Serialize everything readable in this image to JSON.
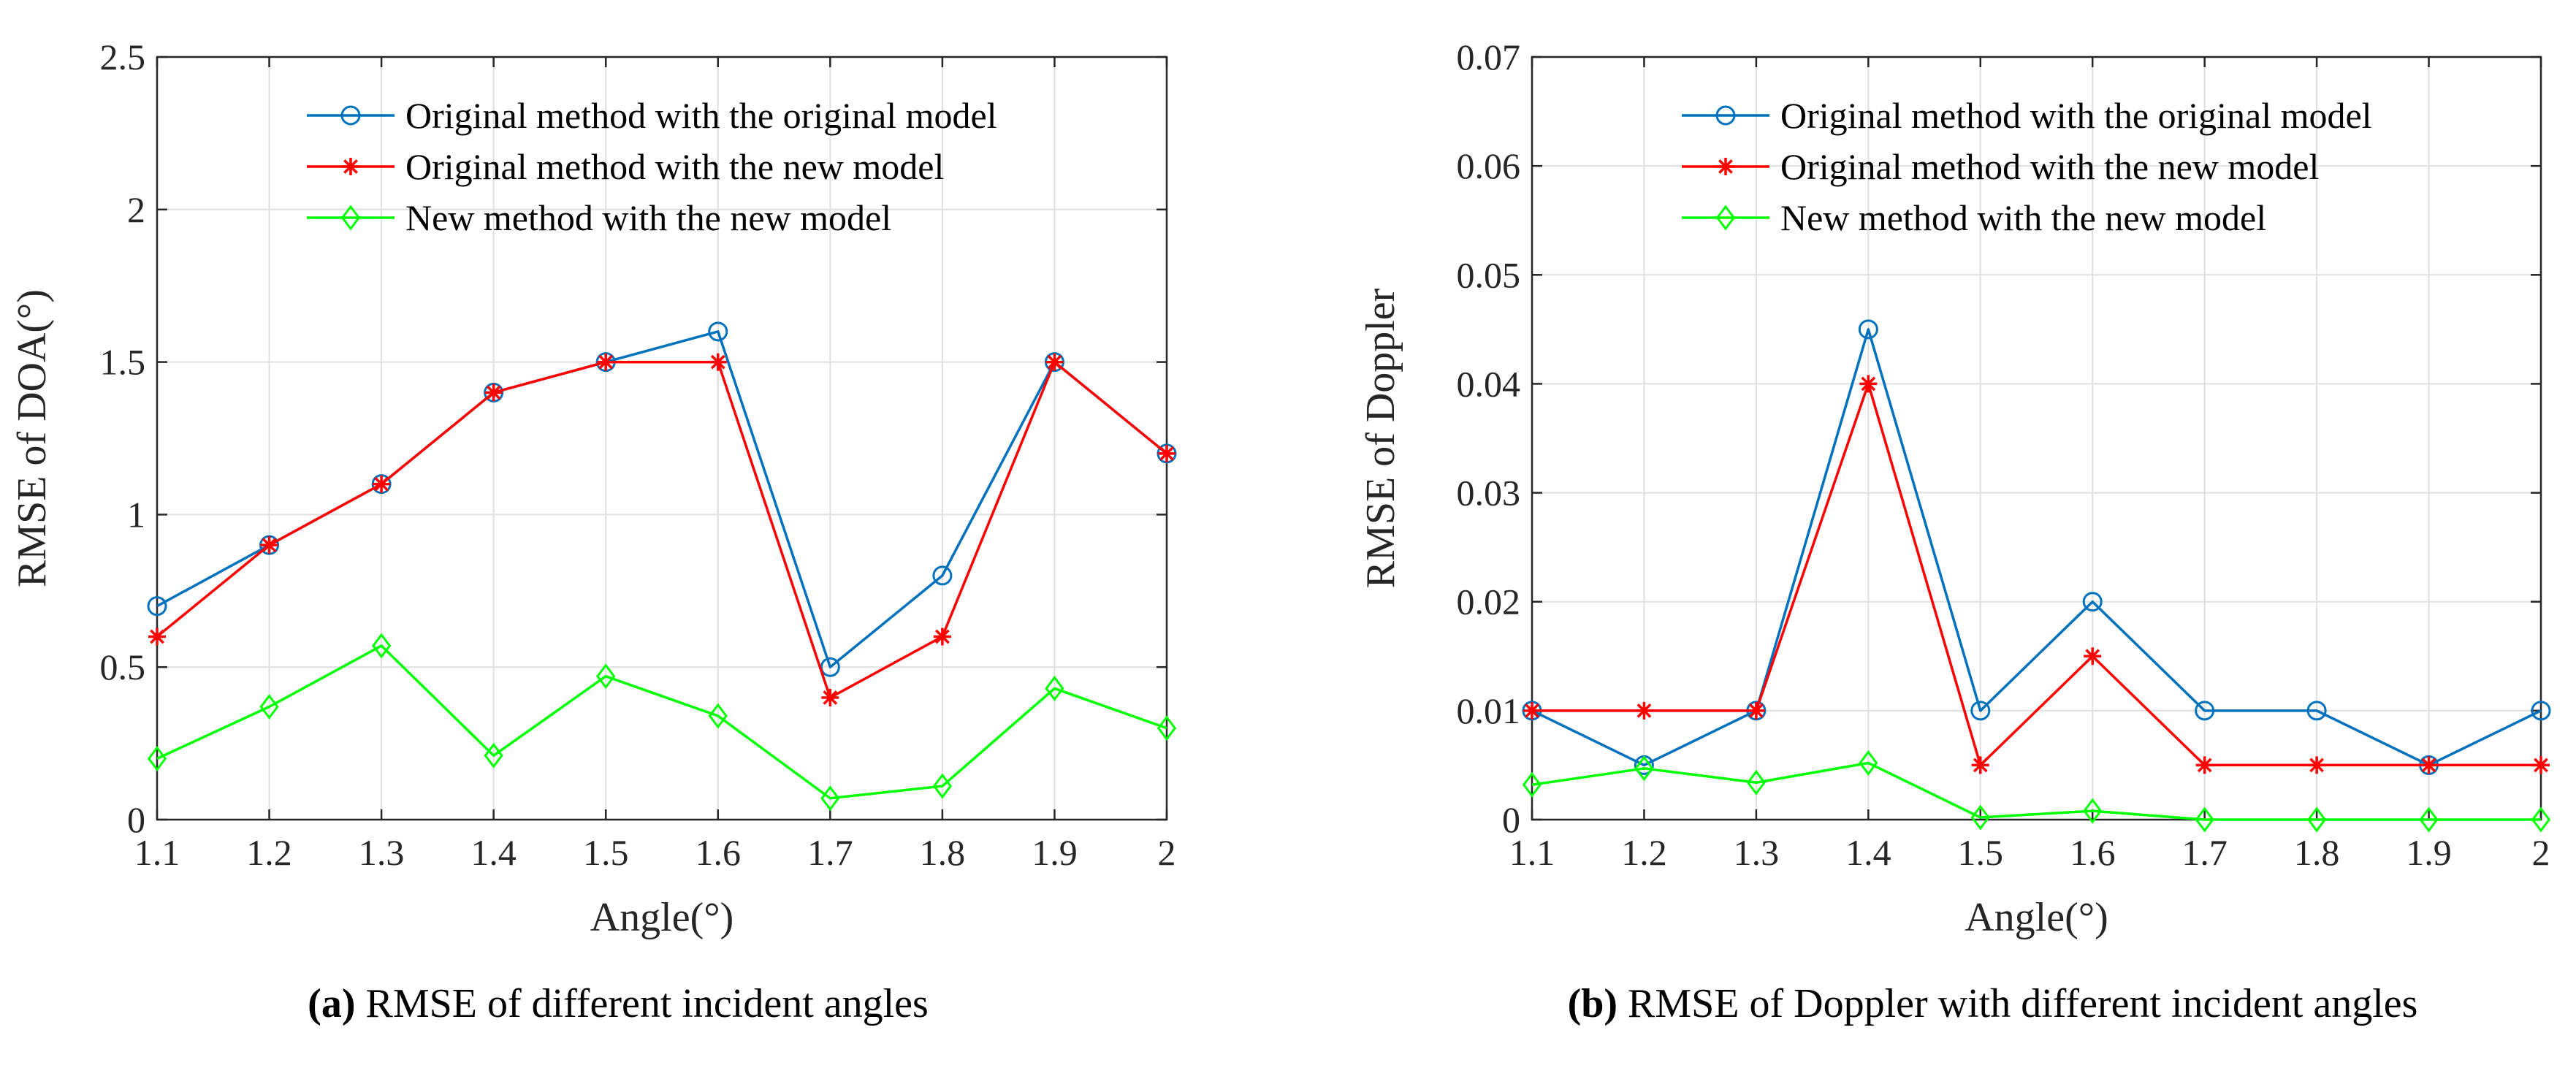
{
  "chart_data": [
    {
      "type": "line",
      "xlabel": "Angle(°)",
      "ylabel": "RMSE of DOA(°)",
      "xlim": [
        1.1,
        2.0
      ],
      "ylim": [
        0,
        2.5
      ],
      "xticks": [
        1.1,
        1.2,
        1.3,
        1.4,
        1.5,
        1.6,
        1.7,
        1.8,
        1.9,
        2.0
      ],
      "xtick_labels": [
        "1.1",
        "1.2",
        "1.3",
        "1.4",
        "1.5",
        "1.6",
        "1.7",
        "1.8",
        "1.9",
        "2"
      ],
      "yticks": [
        0,
        0.5,
        1,
        1.5,
        2,
        2.5
      ],
      "ytick_labels": [
        "0",
        "0.5",
        "1",
        "1.5",
        "2",
        "2.5"
      ],
      "grid": true,
      "legend_position": "top-right",
      "x": [
        1.1,
        1.2,
        1.3,
        1.4,
        1.5,
        1.6,
        1.7,
        1.8,
        1.9,
        2.0
      ],
      "series": [
        {
          "name": "Original method with the original model",
          "color": "#0072BD",
          "marker": "circle",
          "values": [
            0.7,
            0.9,
            1.1,
            1.4,
            1.5,
            1.6,
            0.5,
            0.8,
            1.5,
            1.2
          ]
        },
        {
          "name": "Original method with the new model",
          "color": "#FF0000",
          "marker": "asterisk",
          "values": [
            0.6,
            0.9,
            1.1,
            1.4,
            1.5,
            1.5,
            0.4,
            0.6,
            1.5,
            1.2
          ]
        },
        {
          "name": "New method with the new model",
          "color": "#00FF00",
          "marker": "diamond",
          "values": [
            0.2,
            0.37,
            0.57,
            0.21,
            0.47,
            0.34,
            0.07,
            0.11,
            0.43,
            0.3
          ]
        }
      ],
      "caption_letter": "(a)",
      "caption_text": "RMSE of different incident angles"
    },
    {
      "type": "line",
      "xlabel": "Angle(°)",
      "ylabel": "RMSE of Doppler",
      "xlim": [
        1.1,
        2.0
      ],
      "ylim": [
        0,
        0.07
      ],
      "xticks": [
        1.1,
        1.2,
        1.3,
        1.4,
        1.5,
        1.6,
        1.7,
        1.8,
        1.9,
        2.0
      ],
      "xtick_labels": [
        "1.1",
        "1.2",
        "1.3",
        "1.4",
        "1.5",
        "1.6",
        "1.7",
        "1.8",
        "1.9",
        "2"
      ],
      "yticks": [
        0,
        0.01,
        0.02,
        0.03,
        0.04,
        0.05,
        0.06,
        0.07
      ],
      "ytick_labels": [
        "0",
        "0.01",
        "0.02",
        "0.03",
        "0.04",
        "0.05",
        "0.06",
        "0.07"
      ],
      "grid": true,
      "legend_position": "top-right",
      "x": [
        1.1,
        1.2,
        1.3,
        1.4,
        1.5,
        1.6,
        1.7,
        1.8,
        1.9,
        2.0
      ],
      "series": [
        {
          "name": "Original method with the original model",
          "color": "#0072BD",
          "marker": "circle",
          "values": [
            0.01,
            0.005,
            0.01,
            0.045,
            0.01,
            0.02,
            0.01,
            0.01,
            0.005,
            0.01
          ]
        },
        {
          "name": "Original method with the new model",
          "color": "#FF0000",
          "marker": "asterisk",
          "values": [
            0.01,
            0.01,
            0.01,
            0.04,
            0.005,
            0.015,
            0.005,
            0.005,
            0.005,
            0.005
          ]
        },
        {
          "name": "New method with the new model",
          "color": "#00FF00",
          "marker": "diamond",
          "values": [
            0.0032,
            0.0047,
            0.0034,
            0.0052,
            0.0002,
            0.0008,
            0.0,
            0.0,
            0.0,
            0.0
          ]
        }
      ],
      "caption_letter": "(b)",
      "caption_text": "RMSE of Doppler with different incident angles"
    }
  ]
}
